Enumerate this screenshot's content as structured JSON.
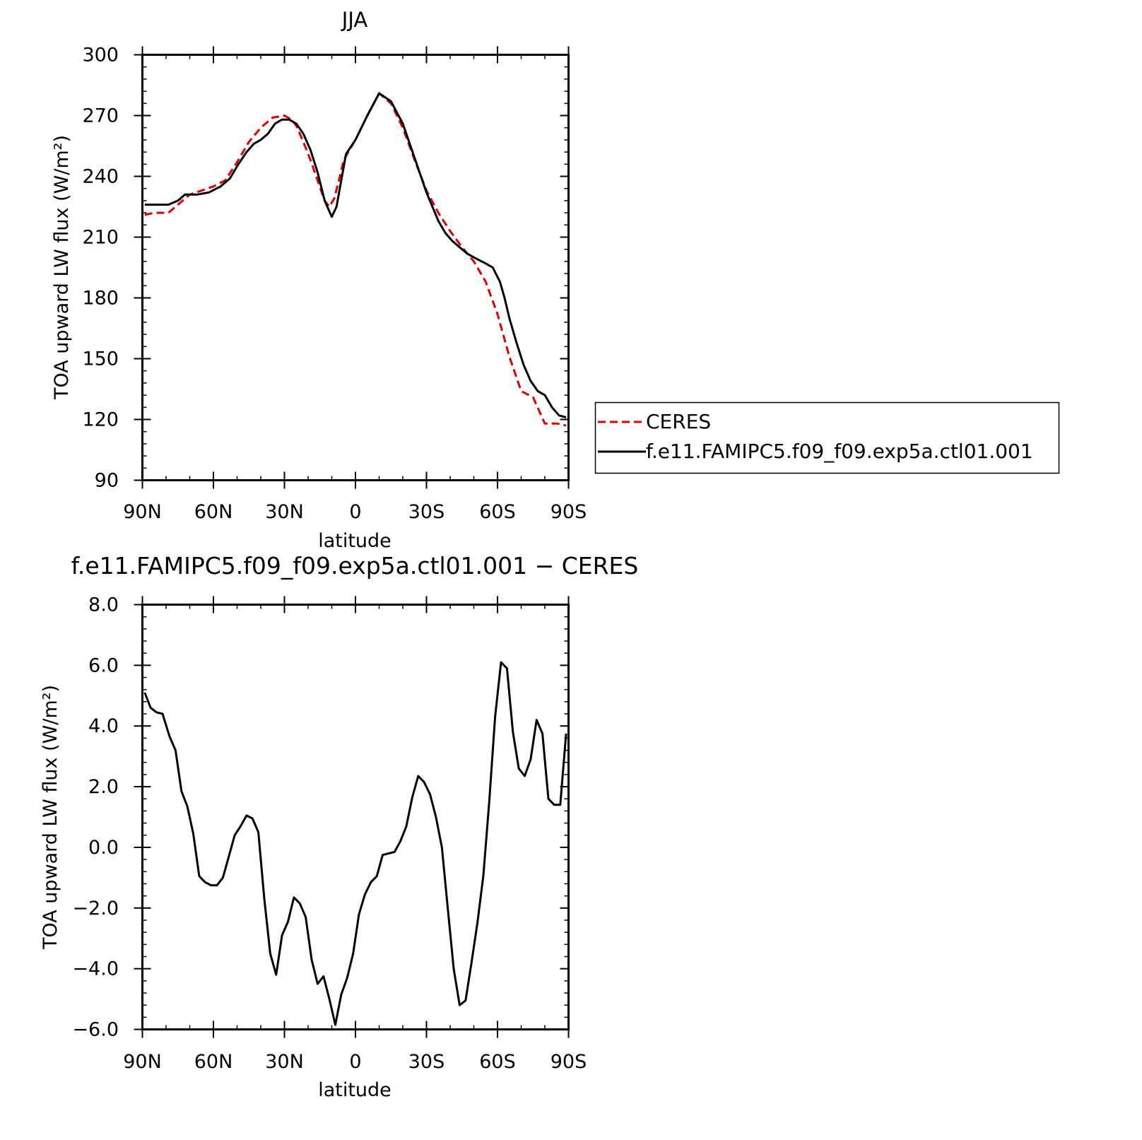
{
  "chart_data": [
    {
      "type": "line",
      "title": "JJA",
      "xlabel": "latitude",
      "ylabel": "TOA upward LW flux (W/m²)",
      "xlim": [
        -90,
        90
      ],
      "ylim": [
        90,
        300
      ],
      "x_axis_note": "x = latitude in degrees, north positive; plotted from 90N (left) to 90S (right)",
      "xticks": [
        90,
        60,
        30,
        0,
        -30,
        -60,
        -90
      ],
      "xtick_labels": [
        "90N",
        "60N",
        "30N",
        "0",
        "30S",
        "60S",
        "90S"
      ],
      "yticks": [
        90,
        120,
        150,
        180,
        210,
        240,
        270,
        300
      ],
      "ytick_labels": [
        "90",
        "120",
        "150",
        "180",
        "210",
        "240",
        "270",
        "300"
      ],
      "grid": false,
      "legend": {
        "placement": "outside-right",
        "entries": [
          "CERES",
          "f.e11.FAMIPC5.f09_f09.exp5a.ctl01.001"
        ]
      },
      "series": [
        {
          "name": "CERES",
          "color": "#e00000",
          "dash": "dashed",
          "x": [
            89,
            85,
            79,
            75,
            70,
            65,
            60,
            55,
            50,
            45,
            40,
            35,
            30,
            27,
            25,
            22,
            19,
            16,
            13,
            11,
            9,
            7,
            5,
            3,
            0,
            -5,
            -10,
            -15,
            -20,
            -25,
            -30,
            -35,
            -40,
            -45,
            -50,
            -55,
            -60,
            -65,
            -70,
            -75,
            -80,
            -85,
            -89
          ],
          "y": [
            221,
            222,
            222,
            226,
            231,
            233,
            235,
            238,
            247,
            257,
            264,
            269,
            270,
            268,
            265,
            257,
            248,
            238,
            228,
            225,
            229,
            238,
            248,
            252,
            258,
            270,
            281,
            276,
            264,
            248,
            233,
            222,
            213,
            205,
            198,
            188,
            172,
            151,
            134,
            131,
            118,
            118,
            117
          ],
          "note": "approximate values read off the plot"
        },
        {
          "name": "f.e11.FAMIPC5.f09_f09.exp5a.ctl01.001",
          "color": "#000000",
          "dash": "solid",
          "x": [
            89,
            83,
            79,
            75,
            72,
            67,
            62,
            57,
            53,
            50,
            46,
            43,
            40,
            37,
            34,
            31,
            28,
            25,
            22,
            19,
            16,
            13,
            10,
            8,
            6,
            4,
            0,
            -5,
            -10,
            -15,
            -20,
            -25,
            -30,
            -35,
            -38,
            -41,
            -44,
            -47,
            -50,
            -55,
            -58,
            -61,
            -63,
            -65,
            -68,
            -71,
            -74,
            -77,
            -80,
            -83,
            -86,
            -89
          ],
          "y": [
            226,
            226,
            226,
            228,
            231,
            231,
            232,
            235,
            239,
            245,
            252,
            256,
            258,
            261,
            266,
            268,
            268,
            266,
            261,
            253,
            242,
            228,
            220,
            225,
            238,
            251,
            258,
            270,
            281,
            277,
            266,
            249,
            232,
            218,
            212,
            208,
            205,
            202,
            200,
            197,
            195,
            188,
            180,
            170,
            158,
            147,
            139,
            134,
            132,
            126,
            122,
            121
          ],
          "note": "approximate values read off the plot"
        }
      ]
    },
    {
      "type": "line",
      "title": "f.e11.FAMIPC5.f09_f09.exp5a.ctl01.001 − CERES",
      "xlabel": "latitude",
      "ylabel": "TOA upward LW flux (W/m²)",
      "xlim": [
        -90,
        90
      ],
      "ylim": [
        -6,
        8
      ],
      "xticks": [
        90,
        60,
        30,
        0,
        -30,
        -60,
        -90
      ],
      "xtick_labels": [
        "90N",
        "60N",
        "30N",
        "0",
        "30S",
        "60S",
        "90S"
      ],
      "yticks": [
        -6,
        -4,
        -2,
        0,
        2,
        4,
        6,
        8
      ],
      "ytick_labels": [
        "−6.0",
        "−4.0",
        "−2.0",
        "0.0",
        "2.0",
        "4.0",
        "6.0",
        "8.0"
      ],
      "grid": false,
      "series": [
        {
          "color": "#000000",
          "dash": "solid",
          "x": [
            89.0,
            86.5,
            84.0,
            81.5,
            78.5,
            76.0,
            73.5,
            71.0,
            68.5,
            66.0,
            63.5,
            61.0,
            58.5,
            56.0,
            53.5,
            51.0,
            48.5,
            46.0,
            43.5,
            41.0,
            38.5,
            36.0,
            33.5,
            31.0,
            28.5,
            26.0,
            23.5,
            21.0,
            18.5,
            16.0,
            13.5,
            11.0,
            8.5,
            6.0,
            3.5,
            1.0,
            -1.5,
            -4.0,
            -6.5,
            -9.0,
            -11.5,
            -14.0,
            -16.5,
            -19.0,
            -21.5,
            -24.0,
            -26.5,
            -29.0,
            -31.5,
            -34.0,
            -36.5,
            -39.0,
            -41.5,
            -44.0,
            -46.5,
            -49.0,
            -51.5,
            -54.0,
            -56.5,
            -59.0,
            -61.5,
            -64.0,
            -66.5,
            -69.0,
            -71.5,
            -74.0,
            -76.5,
            -79.0,
            -81.5,
            -84.0,
            -86.5,
            -89.0
          ],
          "y": [
            5.1,
            4.6,
            4.45,
            4.4,
            3.65,
            3.2,
            1.85,
            1.35,
            0.45,
            -0.95,
            -1.15,
            -1.25,
            -1.25,
            -1.0,
            -0.3,
            0.4,
            0.7,
            1.05,
            0.95,
            0.5,
            -1.7,
            -3.5,
            -4.2,
            -2.9,
            -2.45,
            -1.65,
            -1.85,
            -2.3,
            -3.7,
            -4.5,
            -4.25,
            -5.0,
            -5.85,
            -4.85,
            -4.3,
            -3.5,
            -2.2,
            -1.55,
            -1.15,
            -0.95,
            -0.25,
            -0.2,
            -0.15,
            0.2,
            0.7,
            1.65,
            2.35,
            2.15,
            1.75,
            1.0,
            0.0,
            -2.0,
            -4.0,
            -5.2,
            -5.05,
            -3.8,
            -2.5,
            -0.95,
            1.5,
            4.3,
            6.1,
            5.9,
            3.8,
            2.6,
            2.35,
            2.9,
            4.2,
            3.75,
            1.6,
            1.4,
            1.4,
            3.75
          ],
          "note": "approximate values read off the plot"
        }
      ]
    }
  ]
}
